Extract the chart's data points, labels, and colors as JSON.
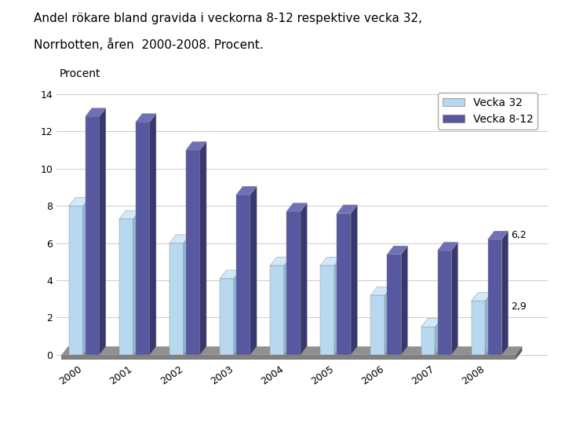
{
  "title_line1": "Andel rökare bland gravida i veckorna 8-12 respektive vecka 32,",
  "title_line2": "Norrbotten, åren  2000-2008. Procent.",
  "ylabel": "Procent",
  "years": [
    "2000",
    "2001",
    "2002",
    "2003",
    "2004",
    "2005",
    "2006",
    "2007",
    "2008"
  ],
  "vecka32": [
    8.0,
    7.3,
    6.0,
    4.1,
    4.8,
    4.8,
    3.2,
    1.5,
    2.9
  ],
  "vecka812": [
    12.8,
    12.5,
    11.0,
    8.6,
    7.7,
    7.6,
    5.4,
    5.6,
    6.2
  ],
  "color_vecka32_face": "#b8d8f0",
  "color_vecka32_side": "#8ab8d8",
  "color_vecka32_top": "#d0e8f8",
  "color_vecka812_face": "#5858a0",
  "color_vecka812_side": "#383870",
  "color_vecka812_top": "#7070b8",
  "color_floor": "#808080",
  "color_floor_side": "#606060",
  "ylim": [
    0,
    14
  ],
  "yticks": [
    0,
    2,
    4,
    6,
    8,
    10,
    12,
    14
  ],
  "annotation_last_32": "2,9",
  "annotation_last_812": "6,2",
  "legend_vecka32": "Vecka 32",
  "legend_vecka812": "Vecka 8-12",
  "background_color": "#ffffff",
  "grid_color": "#cccccc"
}
